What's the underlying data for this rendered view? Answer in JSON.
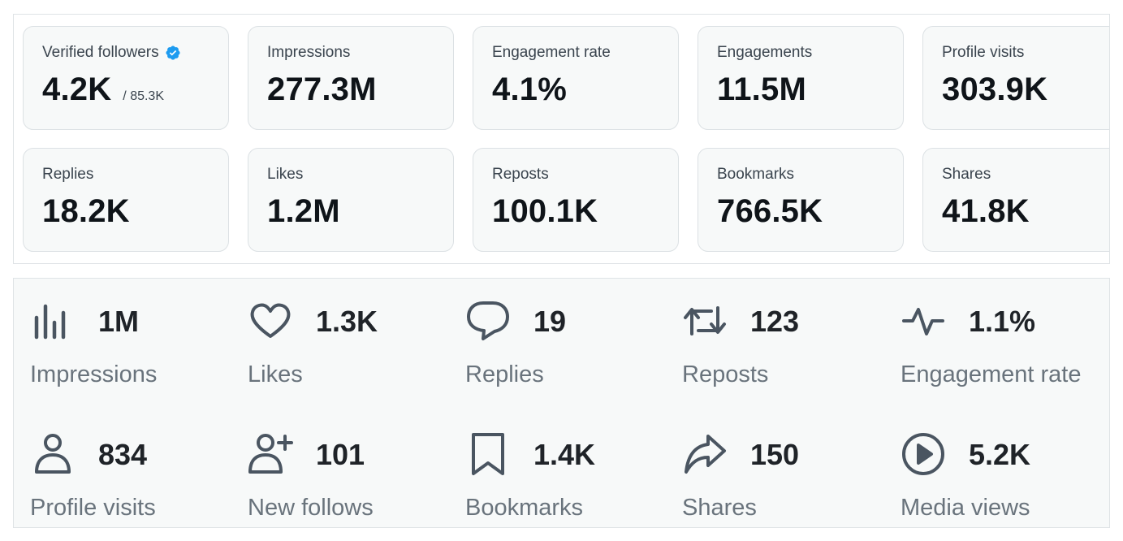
{
  "summary_cards": [
    {
      "label": "Verified followers",
      "value": "4.2K",
      "sub": "/ 85.3K",
      "icon": "verified-badge-icon"
    },
    {
      "label": "Impressions",
      "value": "277.3M"
    },
    {
      "label": "Engagement rate",
      "value": "4.1%"
    },
    {
      "label": "Engagements",
      "value": "11.5M"
    },
    {
      "label": "Profile visits",
      "value": "303.9K"
    },
    {
      "label": "Replies",
      "value": "18.2K"
    },
    {
      "label": "Likes",
      "value": "1.2M"
    },
    {
      "label": "Reposts",
      "value": "100.1K"
    },
    {
      "label": "Bookmarks",
      "value": "766.5K"
    },
    {
      "label": "Shares",
      "value": "41.8K"
    }
  ],
  "post_stats": [
    {
      "icon": "bar-chart-icon",
      "value": "1M",
      "label": "Impressions"
    },
    {
      "icon": "heart-icon",
      "value": "1.3K",
      "label": "Likes"
    },
    {
      "icon": "reply-bubble-icon",
      "value": "19",
      "label": "Replies"
    },
    {
      "icon": "repost-icon",
      "value": "123",
      "label": "Reposts"
    },
    {
      "icon": "pulse-icon",
      "value": "1.1%",
      "label": "Engagement rate"
    },
    {
      "icon": "person-icon",
      "value": "834",
      "label": "Profile visits"
    },
    {
      "icon": "person-add-icon",
      "value": "101",
      "label": "New follows"
    },
    {
      "icon": "bookmark-icon",
      "value": "1.4K",
      "label": "Bookmarks"
    },
    {
      "icon": "share-arrow-icon",
      "value": "150",
      "label": "Shares"
    },
    {
      "icon": "play-circle-icon",
      "value": "5.2K",
      "label": "Media views"
    }
  ],
  "colors": {
    "verified_badge": "#1d9bf0",
    "card_background": "#f7f9f9",
    "text_primary": "#0f1419",
    "text_secondary": "#69737c"
  }
}
